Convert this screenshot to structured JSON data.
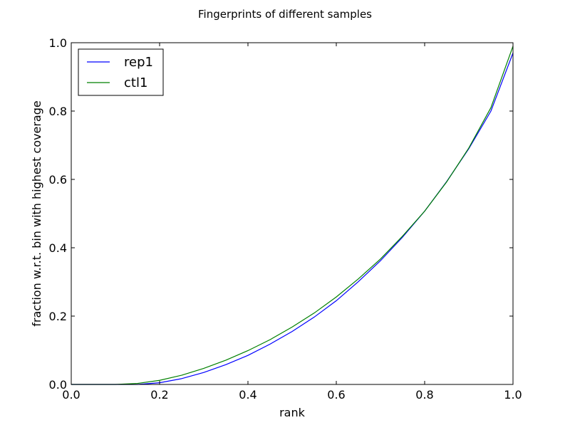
{
  "chart_data": {
    "type": "line",
    "title": "Fingerprints of different samples",
    "xlabel": "rank",
    "ylabel": "fraction w.r.t. bin with highest coverage",
    "xlim": [
      0.0,
      1.0
    ],
    "ylim": [
      0.0,
      1.0
    ],
    "xticks": [
      "0.0",
      "0.2",
      "0.4",
      "0.6",
      "0.8",
      "1.0"
    ],
    "yticks": [
      "0.0",
      "0.2",
      "0.4",
      "0.6",
      "0.8",
      "1.0"
    ],
    "grid": false,
    "legend_position": "upper-left",
    "x": [
      0.0,
      0.05,
      0.1,
      0.15,
      0.2,
      0.25,
      0.3,
      0.35,
      0.4,
      0.45,
      0.5,
      0.55,
      0.6,
      0.65,
      0.7,
      0.75,
      0.8,
      0.85,
      0.9,
      0.95,
      1.0
    ],
    "series": [
      {
        "name": "rep1",
        "color": "#0000ff",
        "values": [
          0.0,
          0.0,
          0.0,
          0.0,
          0.005,
          0.017,
          0.035,
          0.058,
          0.085,
          0.118,
          0.155,
          0.197,
          0.245,
          0.301,
          0.362,
          0.431,
          0.507,
          0.594,
          0.69,
          0.8,
          0.97
        ]
      },
      {
        "name": "ctl1",
        "color": "#008000",
        "values": [
          0.0,
          0.0,
          0.0,
          0.003,
          0.012,
          0.027,
          0.047,
          0.071,
          0.099,
          0.131,
          0.168,
          0.209,
          0.256,
          0.309,
          0.367,
          0.434,
          0.507,
          0.593,
          0.692,
          0.81,
          0.99
        ]
      }
    ]
  }
}
